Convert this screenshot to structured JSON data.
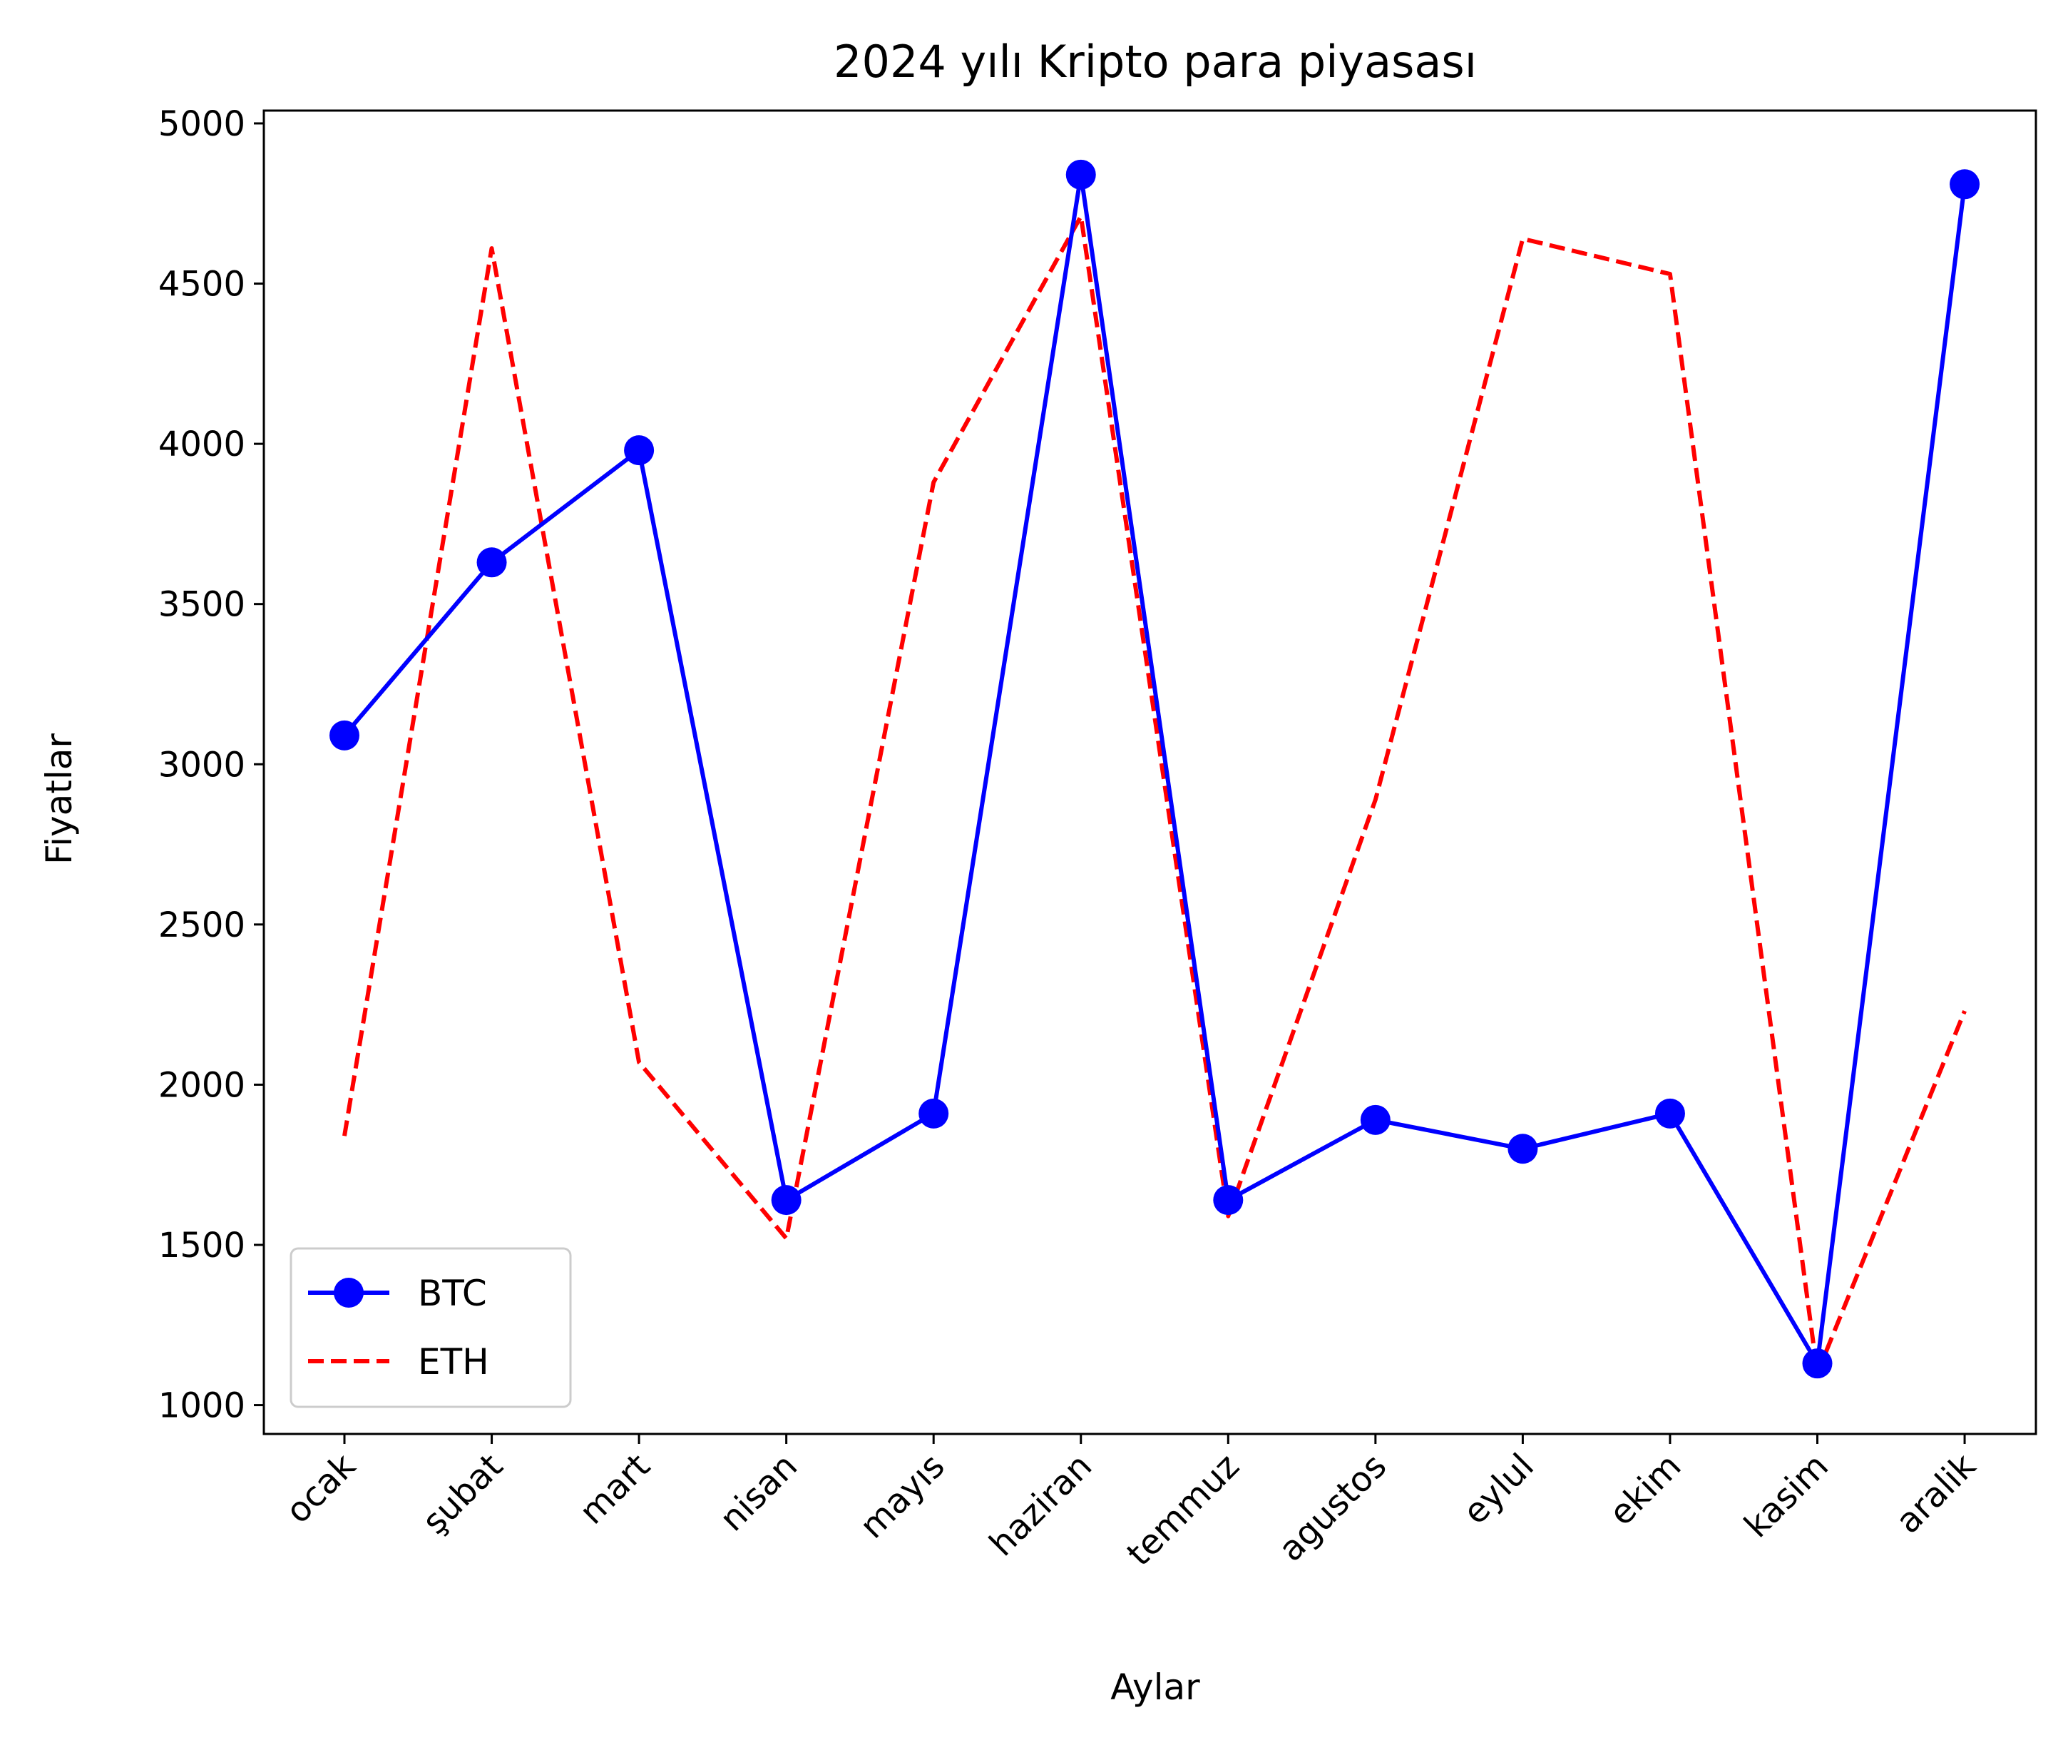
{
  "chart_data": {
    "type": "line",
    "title": "2024 yılı Kripto para piyasası",
    "xlabel": "Aylar",
    "ylabel": "Fiyatlar",
    "categories": [
      "ocak",
      "şubat",
      "mart",
      "nisan",
      "mayıs",
      "haziran",
      "temmuz",
      "agustos",
      "eylul",
      "ekim",
      "kasim",
      "aralik"
    ],
    "ylim": [
      910,
      5040
    ],
    "yticks": [
      "1000",
      "1500",
      "2000",
      "2500",
      "3000",
      "3500",
      "4000",
      "4500",
      "5000"
    ],
    "grid": false,
    "legend_position": "lower-left",
    "series": [
      {
        "name": "BTC",
        "values": [
          3090,
          3630,
          3980,
          1640,
          1910,
          4840,
          1640,
          1890,
          1800,
          1910,
          1130,
          4810
        ],
        "color": "#0000ff",
        "line_style": "solid",
        "marker": "circle"
      },
      {
        "name": "ETH",
        "values": [
          1840,
          4610,
          2070,
          1520,
          3880,
          4710,
          1590,
          2890,
          4640,
          4530,
          1100,
          2230
        ],
        "color": "#ff0000",
        "line_style": "dashed",
        "marker": "none"
      }
    ]
  }
}
